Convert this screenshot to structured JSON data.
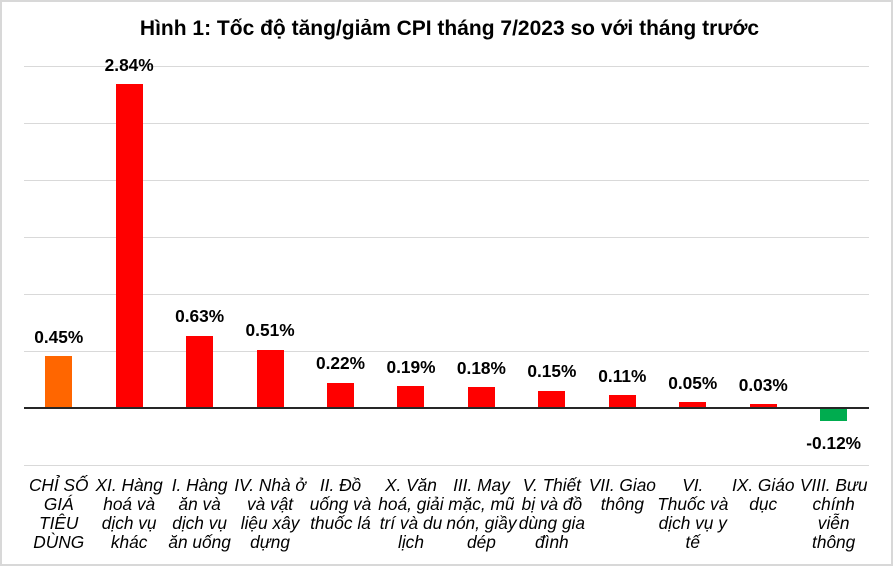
{
  "chart_data": {
    "type": "bar",
    "title": "Hình 1: Tốc độ tăng/giảm CPI tháng 7/2023 so với tháng trước",
    "xlabel": "",
    "ylabel": "",
    "ylim": [
      -0.5,
      3.0
    ],
    "gridline_step": 0.5,
    "grid": true,
    "legend_position": "none",
    "unit": "%",
    "categories": [
      "CHỈ SỐ GIÁ TIÊU DÙNG",
      "XI. Hàng hoá và dịch vụ khác",
      "I. Hàng ăn và dịch vụ ăn uống",
      "IV. Nhà ở và vật liệu xây dựng",
      "II. Đồ uống và thuốc lá",
      "X. Văn hoá, giải trí và du lịch",
      "III. May mặc, mũ nón, giầy dép",
      "V. Thiết bị và đồ dùng gia đình",
      "VII. Giao thông",
      "VI. Thuốc và dịch vụ y tế",
      "IX. Giáo dục",
      "VIII. Bưu chính viễn thông"
    ],
    "category_label_lines": [
      [
        "CHỈ SỐ",
        "GIÁ",
        "TIÊU",
        "DÙNG"
      ],
      [
        "XI. Hàng",
        "hoá và",
        "dịch vụ",
        "khác"
      ],
      [
        "I. Hàng",
        "ăn và",
        "dịch vụ",
        "ăn uống"
      ],
      [
        "IV. Nhà ở",
        "và vật",
        "liệu xây",
        "dựng"
      ],
      [
        "II. Đồ",
        "uống và",
        "thuốc lá"
      ],
      [
        "X. Văn",
        "hoá, giải",
        "trí và du",
        "lịch"
      ],
      [
        "III. May",
        "mặc, mũ",
        "nón, giầy",
        "dép"
      ],
      [
        "V. Thiết",
        "bị và đồ",
        "dùng gia",
        "đình"
      ],
      [
        "VII. Giao",
        "thông"
      ],
      [
        "VI.",
        "Thuốc và",
        "dịch vụ y",
        "tế"
      ],
      [
        "IX. Giáo",
        "dục"
      ],
      [
        "VIII. Bưu",
        "chính",
        "viễn",
        "thông"
      ]
    ],
    "values": [
      0.45,
      2.84,
      0.63,
      0.51,
      0.22,
      0.19,
      0.18,
      0.15,
      0.11,
      0.05,
      0.03,
      -0.12
    ],
    "value_labels": [
      "0.45%",
      "2.84%",
      "0.63%",
      "0.51%",
      "0.22%",
      "0.19%",
      "0.18%",
      "0.15%",
      "0.11%",
      "0.05%",
      "0.03%",
      "-0.12%"
    ],
    "bar_colors": [
      "#FF6600",
      "#FF0000",
      "#FF0000",
      "#FF0000",
      "#FF0000",
      "#FF0000",
      "#FF0000",
      "#FF0000",
      "#FF0000",
      "#FF0000",
      "#FF0000",
      "#00AC4F"
    ],
    "colors": {
      "bar_positive": "#FF0000",
      "bar_total_cpi": "#FF6600",
      "bar_negative": "#00AC4F",
      "gridline": "#D9D9D9",
      "axis_line": "#262626",
      "text": "#000000",
      "frame_border": "#D8D8D8",
      "background": "#FFFFFF"
    }
  }
}
